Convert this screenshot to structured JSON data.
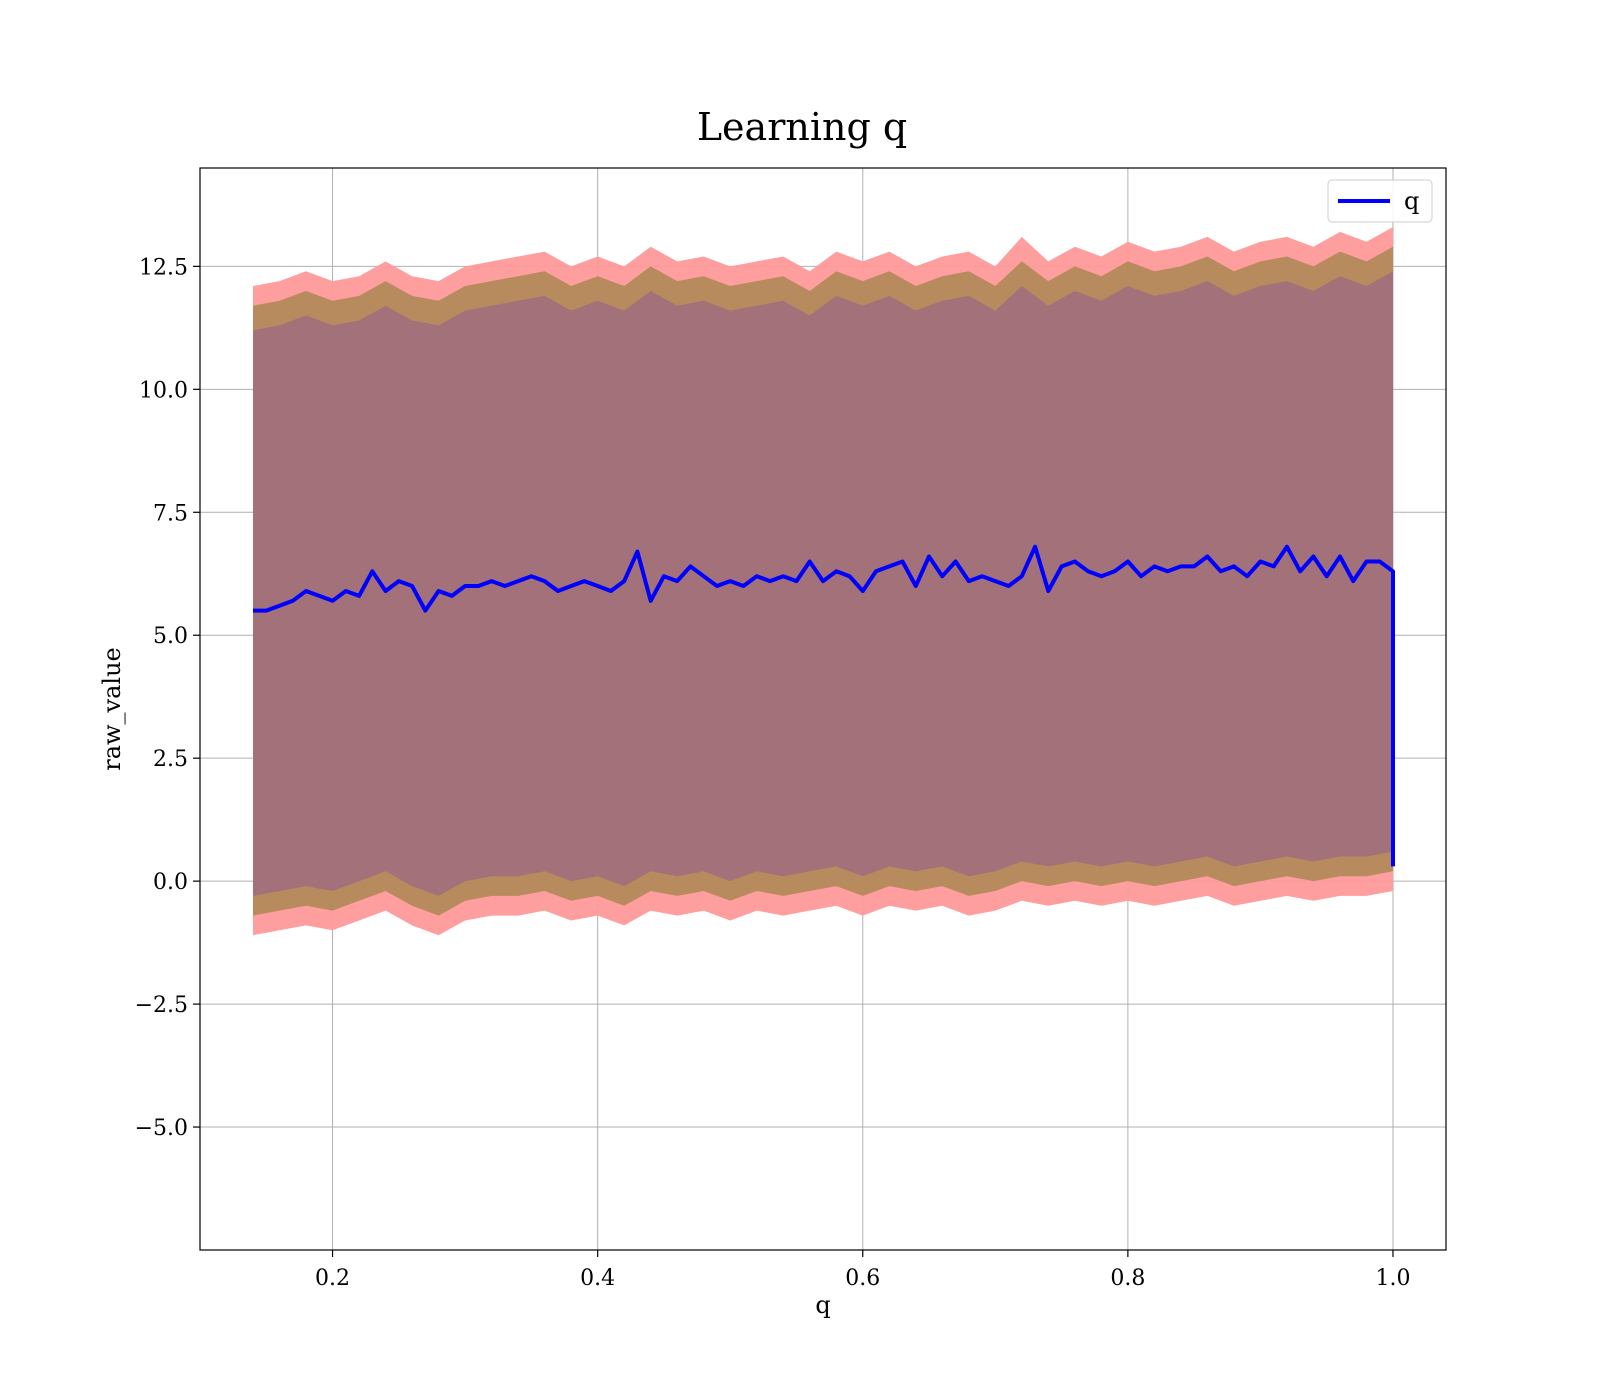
{
  "chart_data": {
    "type": "line",
    "title": "Learning q",
    "xlabel": "q",
    "ylabel": "raw_value",
    "xlim": [
      0.1,
      1.04
    ],
    "ylim": [
      -7.5,
      14.5
    ],
    "xticks": [
      0.2,
      0.4,
      0.6,
      0.8,
      1.0
    ],
    "xtick_labels": [
      "0.2",
      "0.4",
      "0.6",
      "0.8",
      "1.0"
    ],
    "yticks": [
      -5.0,
      -2.5,
      0.0,
      2.5,
      5.0,
      7.5,
      10.0,
      12.5
    ],
    "ytick_labels": [
      "−5.0",
      "−2.5",
      "0.0",
      "2.5",
      "5.0",
      "7.5",
      "10.0",
      "12.5"
    ],
    "grid": true,
    "legend_position": "upper-right",
    "series": [
      {
        "name": "q",
        "color": "#0000ff",
        "x": [
          0.14,
          0.15,
          0.16,
          0.17,
          0.18,
          0.19,
          0.2,
          0.21,
          0.22,
          0.23,
          0.24,
          0.25,
          0.26,
          0.27,
          0.28,
          0.29,
          0.3,
          0.31,
          0.32,
          0.33,
          0.34,
          0.35,
          0.36,
          0.37,
          0.38,
          0.39,
          0.4,
          0.41,
          0.42,
          0.43,
          0.44,
          0.45,
          0.46,
          0.47,
          0.48,
          0.49,
          0.5,
          0.51,
          0.52,
          0.53,
          0.54,
          0.55,
          0.56,
          0.57,
          0.58,
          0.59,
          0.6,
          0.61,
          0.62,
          0.63,
          0.64,
          0.65,
          0.66,
          0.67,
          0.68,
          0.69,
          0.7,
          0.71,
          0.72,
          0.73,
          0.74,
          0.75,
          0.76,
          0.77,
          0.78,
          0.79,
          0.8,
          0.81,
          0.82,
          0.83,
          0.84,
          0.85,
          0.86,
          0.87,
          0.88,
          0.89,
          0.9,
          0.91,
          0.92,
          0.93,
          0.94,
          0.95,
          0.96,
          0.97,
          0.98,
          0.99,
          1.0,
          1.0
        ],
        "y": [
          5.5,
          5.5,
          5.6,
          5.7,
          5.9,
          5.8,
          5.7,
          5.9,
          5.8,
          6.3,
          5.9,
          6.1,
          6.0,
          5.5,
          5.9,
          5.8,
          6.0,
          6.0,
          6.1,
          6.0,
          6.1,
          6.2,
          6.1,
          5.9,
          6.0,
          6.1,
          6.0,
          5.9,
          6.1,
          6.7,
          5.7,
          6.2,
          6.1,
          6.4,
          6.2,
          6.0,
          6.1,
          6.0,
          6.2,
          6.1,
          6.2,
          6.1,
          6.5,
          6.1,
          6.3,
          6.2,
          5.9,
          6.3,
          6.4,
          6.5,
          6.0,
          6.6,
          6.2,
          6.5,
          6.1,
          6.2,
          6.1,
          6.0,
          6.2,
          6.8,
          5.9,
          6.4,
          6.5,
          6.3,
          6.2,
          6.3,
          6.5,
          6.2,
          6.4,
          6.3,
          6.4,
          6.4,
          6.6,
          6.3,
          6.4,
          6.2,
          6.5,
          6.4,
          6.8,
          6.3,
          6.6,
          6.2,
          6.6,
          6.1,
          6.5,
          6.5,
          6.3,
          0.3
        ]
      }
    ],
    "bands": [
      {
        "color": "#ff9999",
        "x": [
          0.14,
          0.16,
          0.18,
          0.2,
          0.22,
          0.24,
          0.26,
          0.28,
          0.3,
          0.32,
          0.34,
          0.36,
          0.38,
          0.4,
          0.42,
          0.44,
          0.46,
          0.48,
          0.5,
          0.52,
          0.54,
          0.56,
          0.58,
          0.6,
          0.62,
          0.64,
          0.66,
          0.68,
          0.7,
          0.72,
          0.74,
          0.76,
          0.78,
          0.8,
          0.82,
          0.84,
          0.86,
          0.88,
          0.9,
          0.92,
          0.94,
          0.96,
          0.98,
          1.0
        ],
        "upper": [
          12.1,
          12.2,
          12.4,
          12.2,
          12.3,
          12.6,
          12.3,
          12.2,
          12.5,
          12.6,
          12.7,
          12.8,
          12.5,
          12.7,
          12.5,
          12.9,
          12.6,
          12.7,
          12.5,
          12.6,
          12.7,
          12.4,
          12.8,
          12.6,
          12.8,
          12.5,
          12.7,
          12.8,
          12.5,
          13.1,
          12.6,
          12.9,
          12.7,
          13.0,
          12.8,
          12.9,
          13.1,
          12.8,
          13.0,
          13.1,
          12.9,
          13.2,
          13.0,
          13.3
        ],
        "lower": [
          -1.1,
          -1.0,
          -0.9,
          -1.0,
          -0.8,
          -0.6,
          -0.9,
          -1.1,
          -0.8,
          -0.7,
          -0.7,
          -0.6,
          -0.8,
          -0.7,
          -0.9,
          -0.6,
          -0.7,
          -0.6,
          -0.8,
          -0.6,
          -0.7,
          -0.6,
          -0.5,
          -0.7,
          -0.5,
          -0.6,
          -0.5,
          -0.7,
          -0.6,
          -0.4,
          -0.5,
          -0.4,
          -0.5,
          -0.4,
          -0.5,
          -0.4,
          -0.3,
          -0.5,
          -0.4,
          -0.3,
          -0.4,
          -0.3,
          -0.3,
          -0.2
        ]
      },
      {
        "color": "#b38a5a",
        "x": [
          0.14,
          0.16,
          0.18,
          0.2,
          0.22,
          0.24,
          0.26,
          0.28,
          0.3,
          0.32,
          0.34,
          0.36,
          0.38,
          0.4,
          0.42,
          0.44,
          0.46,
          0.48,
          0.5,
          0.52,
          0.54,
          0.56,
          0.58,
          0.6,
          0.62,
          0.64,
          0.66,
          0.68,
          0.7,
          0.72,
          0.74,
          0.76,
          0.78,
          0.8,
          0.82,
          0.84,
          0.86,
          0.88,
          0.9,
          0.92,
          0.94,
          0.96,
          0.98,
          1.0
        ],
        "upper": [
          11.7,
          11.8,
          12.0,
          11.8,
          11.9,
          12.2,
          11.9,
          11.8,
          12.1,
          12.2,
          12.3,
          12.4,
          12.1,
          12.3,
          12.1,
          12.5,
          12.2,
          12.3,
          12.1,
          12.2,
          12.3,
          12.0,
          12.4,
          12.2,
          12.4,
          12.1,
          12.3,
          12.4,
          12.1,
          12.6,
          12.2,
          12.5,
          12.3,
          12.6,
          12.4,
          12.5,
          12.7,
          12.4,
          12.6,
          12.7,
          12.5,
          12.8,
          12.6,
          12.9
        ],
        "lower": [
          -0.7,
          -0.6,
          -0.5,
          -0.6,
          -0.4,
          -0.2,
          -0.5,
          -0.7,
          -0.4,
          -0.3,
          -0.3,
          -0.2,
          -0.4,
          -0.3,
          -0.5,
          -0.2,
          -0.3,
          -0.2,
          -0.4,
          -0.2,
          -0.3,
          -0.2,
          -0.1,
          -0.3,
          -0.1,
          -0.2,
          -0.1,
          -0.3,
          -0.2,
          0.0,
          -0.1,
          0.0,
          -0.1,
          0.0,
          -0.1,
          0.0,
          0.1,
          -0.1,
          0.0,
          0.1,
          0.0,
          0.1,
          0.1,
          0.2
        ]
      },
      {
        "color": "#a0707a",
        "x": [
          0.14,
          0.16,
          0.18,
          0.2,
          0.22,
          0.24,
          0.26,
          0.28,
          0.3,
          0.32,
          0.34,
          0.36,
          0.38,
          0.4,
          0.42,
          0.44,
          0.46,
          0.48,
          0.5,
          0.52,
          0.54,
          0.56,
          0.58,
          0.6,
          0.62,
          0.64,
          0.66,
          0.68,
          0.7,
          0.72,
          0.74,
          0.76,
          0.78,
          0.8,
          0.82,
          0.84,
          0.86,
          0.88,
          0.9,
          0.92,
          0.94,
          0.96,
          0.98,
          1.0
        ],
        "upper": [
          11.2,
          11.3,
          11.5,
          11.3,
          11.4,
          11.7,
          11.4,
          11.3,
          11.6,
          11.7,
          11.8,
          11.9,
          11.6,
          11.8,
          11.6,
          12.0,
          11.7,
          11.8,
          11.6,
          11.7,
          11.8,
          11.5,
          11.9,
          11.7,
          11.9,
          11.6,
          11.8,
          11.9,
          11.6,
          12.1,
          11.7,
          12.0,
          11.8,
          12.1,
          11.9,
          12.0,
          12.2,
          11.9,
          12.1,
          12.2,
          12.0,
          12.3,
          12.1,
          12.4
        ],
        "lower": [
          -0.3,
          -0.2,
          -0.1,
          -0.2,
          0.0,
          0.2,
          -0.1,
          -0.3,
          0.0,
          0.1,
          0.1,
          0.2,
          0.0,
          0.1,
          -0.1,
          0.2,
          0.1,
          0.2,
          0.0,
          0.2,
          0.1,
          0.2,
          0.3,
          0.1,
          0.3,
          0.2,
          0.3,
          0.1,
          0.2,
          0.4,
          0.3,
          0.4,
          0.3,
          0.4,
          0.3,
          0.4,
          0.5,
          0.3,
          0.4,
          0.5,
          0.4,
          0.5,
          0.5,
          0.6
        ]
      }
    ]
  }
}
